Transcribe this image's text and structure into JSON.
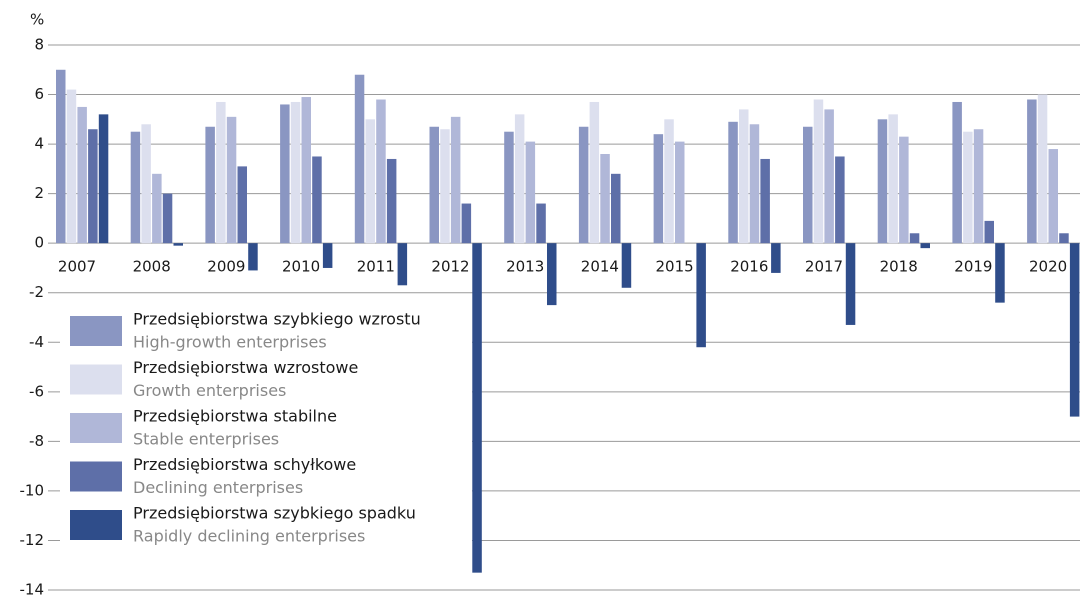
{
  "chart_data": {
    "type": "bar",
    "y_unit": "%",
    "categories": [
      "2007",
      "2008",
      "2009",
      "2010",
      "2011",
      "2012",
      "2013",
      "2014",
      "2015",
      "2016",
      "2017",
      "2018",
      "2019",
      "2020"
    ],
    "series": [
      {
        "name": "Przedsiębiorstwa szybkiego wzrostu",
        "name_en": "High-growth enterprises",
        "color": "#8a96c2",
        "values": [
          7.0,
          4.5,
          4.7,
          5.6,
          6.8,
          4.7,
          4.5,
          4.7,
          4.4,
          4.9,
          4.7,
          5.0,
          5.7,
          5.8
        ]
      },
      {
        "name": "Przedsiębiorstwa wzrostowe",
        "name_en": "Growth enterprises",
        "color": "#dcdfee",
        "values": [
          6.2,
          4.8,
          5.7,
          5.7,
          5.0,
          4.6,
          5.2,
          5.7,
          5.0,
          5.4,
          5.8,
          5.2,
          4.5,
          6.0
        ]
      },
      {
        "name": "Przedsiębiorstwa stabilne",
        "name_en": "Stable enterprises",
        "color": "#b0b7d8",
        "values": [
          5.5,
          2.8,
          5.1,
          5.9,
          5.8,
          5.1,
          4.1,
          3.6,
          4.1,
          4.8,
          5.4,
          4.3,
          4.6,
          3.8
        ]
      },
      {
        "name": "Przedsiębiorstwa schyłkowe",
        "name_en": "Declining enterprises",
        "color": "#5e6fa8",
        "values": [
          4.6,
          2.0,
          3.1,
          3.5,
          3.4,
          1.6,
          1.6,
          2.8,
          0,
          3.4,
          3.5,
          0.4,
          0.9,
          0.4
        ]
      },
      {
        "name": "Przedsiębiorstwa szybkiego spadku",
        "name_en": "Rapidly declining enterprises",
        "color": "#2f4d8a",
        "values": [
          5.2,
          -0.1,
          -1.1,
          -1.0,
          -1.7,
          -13.3,
          -2.5,
          -1.8,
          -4.2,
          -1.2,
          -3.3,
          -0.2,
          -2.4,
          -7.0
        ]
      }
    ],
    "ylim": [
      -14,
      8
    ],
    "yticks": [
      -14,
      -12,
      -10,
      -8,
      -6,
      -4,
      -2,
      0,
      2,
      4,
      6,
      8
    ],
    "grid": true
  }
}
